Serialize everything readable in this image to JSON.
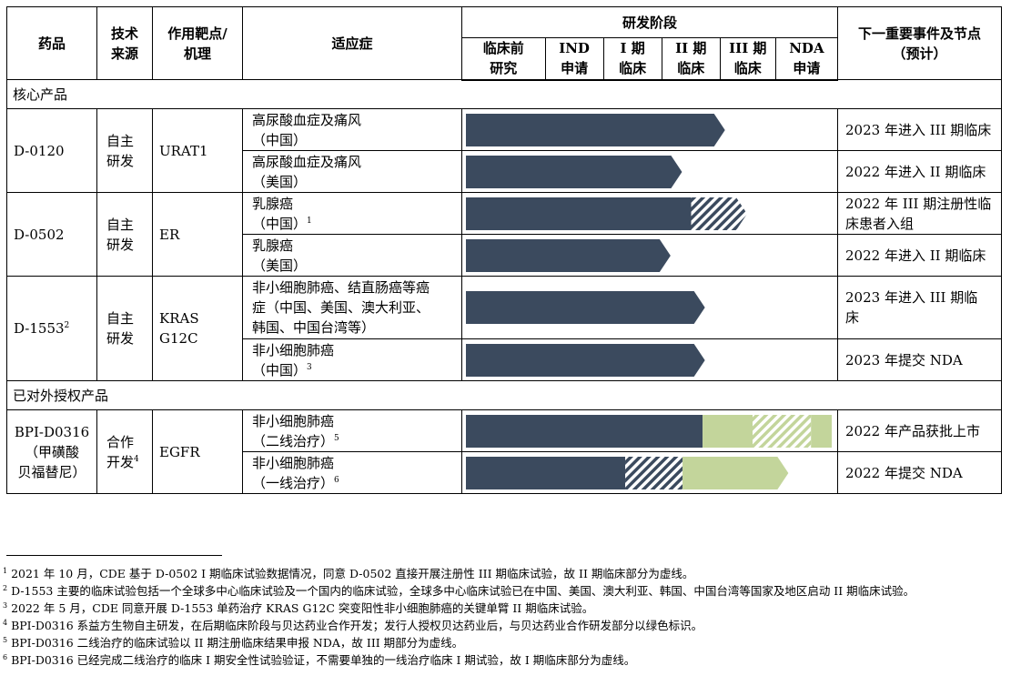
{
  "header": {
    "drug": "药品",
    "source": [
      "技术",
      "来源"
    ],
    "target": [
      "作用靶点/",
      "机理"
    ],
    "indication": "适应症",
    "stage_group": "研发阶段",
    "stages": [
      [
        "临床前",
        "研究"
      ],
      [
        "IND",
        "申请"
      ],
      [
        "I 期",
        "临床"
      ],
      [
        "II 期",
        "临床"
      ],
      [
        "III 期",
        "临床"
      ],
      [
        "NDA",
        "申请"
      ]
    ],
    "next_event": [
      "下一重要事件及节点",
      "（预计）"
    ]
  },
  "colors": {
    "navy": "#3b4a5e",
    "green": "#c3d59b",
    "border": "#000000"
  },
  "sections": [
    {
      "title": "核心产品",
      "drugs": [
        {
          "name": [
            "D-0120"
          ],
          "name_sup": "",
          "source": [
            "自主",
            "研发"
          ],
          "source_sup": "",
          "target": [
            "URAT1"
          ],
          "rows": [
            {
              "indication": [
                "高尿酸血症及痛风",
                "（中国）"
              ],
              "ind_sup": "",
              "event": [
                "2023 年进入 III 期临床"
              ],
              "bar": [
                {
                  "from": 0,
                  "to": 3.9,
                  "fill": "navy"
                }
              ],
              "arrow": true
            },
            {
              "indication": [
                "高尿酸血症及痛风",
                "（美国）"
              ],
              "ind_sup": "",
              "event": [
                "2022 年进入 II 期临床"
              ],
              "bar": [
                {
                  "from": 0,
                  "to": 3.15,
                  "fill": "navy"
                }
              ],
              "arrow": true
            }
          ]
        },
        {
          "name": [
            "D-0502"
          ],
          "name_sup": "",
          "source": [
            "自主",
            "研发"
          ],
          "source_sup": "",
          "target": [
            "ER"
          ],
          "rows": [
            {
              "indication": [
                "乳腺癌",
                "（中国）"
              ],
              "ind_sup": "1",
              "event": [
                "2022 年 III 期注册性临",
                "床患者入组"
              ],
              "bar": [
                {
                  "from": 0,
                  "to": 3.5,
                  "fill": "navy"
                },
                {
                  "from": 3.5,
                  "to": 4.3,
                  "fill": "hatch-navy"
                }
              ],
              "arrow": true
            },
            {
              "indication": [
                "乳腺癌",
                "（美国）"
              ],
              "ind_sup": "",
              "event": [
                "2022 年进入 II 期临床"
              ],
              "bar": [
                {
                  "from": 0,
                  "to": 2.95,
                  "fill": "navy"
                }
              ],
              "arrow": true
            }
          ]
        },
        {
          "name": [
            "D-1553"
          ],
          "name_sup": "2",
          "source": [
            "自主",
            "研发"
          ],
          "source_sup": "",
          "target": [
            "KRAS",
            "G12C"
          ],
          "rows": [
            {
              "indication": [
                "非小细胞肺癌、结直肠癌等癌",
                "症（中国、美国、澳大利亚、",
                "韩国、中国台湾等）"
              ],
              "ind_sup": "",
              "event": [
                "2023 年进入 III 期临",
                "床"
              ],
              "bar": [
                {
                  "from": 0,
                  "to": 3.55,
                  "fill": "navy"
                }
              ],
              "arrow": true
            },
            {
              "indication": [
                "非小细胞肺癌",
                "（中国）"
              ],
              "ind_sup": "3",
              "event": [
                "2023 年提交 NDA"
              ],
              "bar": [
                {
                  "from": 0,
                  "to": 3.55,
                  "fill": "navy"
                }
              ],
              "arrow": true
            }
          ]
        }
      ]
    },
    {
      "title": "已对外授权产品",
      "drugs": [
        {
          "name": [
            "BPI-D0316",
            "（甲磺酸",
            "贝福替尼）"
          ],
          "name_sup": "",
          "source": [
            "合作",
            "开发"
          ],
          "source_sup": "4",
          "target": [
            "EGFR"
          ],
          "rows": [
            {
              "indication": [
                "非小细胞肺癌",
                "（二线治疗）"
              ],
              "ind_sup": "5",
              "event": [
                "2022 年产品获批上市"
              ],
              "bar": [
                {
                  "from": 0,
                  "to": 3.7,
                  "fill": "navy"
                },
                {
                  "from": 3.7,
                  "to": 4.6,
                  "fill": "green"
                },
                {
                  "from": 4.6,
                  "to": 5.6,
                  "fill": "hatch-green"
                },
                {
                  "from": 5.6,
                  "to": 6.2,
                  "fill": "green"
                }
              ],
              "arrow": true
            },
            {
              "indication": [
                "非小细胞肺癌",
                "（一线治疗）"
              ],
              "ind_sup": "6",
              "event": [
                "2022 年提交 NDA"
              ],
              "bar": [
                {
                  "from": 0,
                  "to": 2.35,
                  "fill": "navy"
                },
                {
                  "from": 2.35,
                  "to": 3.35,
                  "fill": "hatch-navy"
                },
                {
                  "from": 3.35,
                  "to": 5.05,
                  "fill": "green"
                }
              ],
              "arrow": true
            }
          ]
        }
      ]
    }
  ],
  "footnotes": [
    {
      "num": "1",
      "text": " 2021 年 10 月，CDE 基于 D-0502 I 期临床试验数据情况，同意 D-0502 直接开展注册性 III 期临床试验，故 II 期临床部分为虚线。"
    },
    {
      "num": "2",
      "text": " D-1553 主要的临床试验包括一个全球多中心临床试验及一个国内的临床试验，全球多中心临床试验已在中国、美国、澳大利亚、韩国、中国台湾等国家及地区启动 II 期临床试验。"
    },
    {
      "num": "3",
      "text": " 2022 年 5 月，CDE 同意开展 D-1553 单药治疗 KRAS G12C 突变阳性非小细胞肺癌的关键单臂 II 期临床试验。"
    },
    {
      "num": "4",
      "text": " BPI-D0316 系益方生物自主研发，在后期临床阶段与贝达药业合作开发；发行人授权贝达药业后，与贝达药业合作研发部分以绿色标识。"
    },
    {
      "num": "5",
      "text": " BPI-D0316 二线治疗的临床试验以 II 期注册临床结果申报 NDA，故 III 期部分为虚线。"
    },
    {
      "num": "6",
      "text": " BPI-D0316 已经完成二线治疗的临床 I 期安全性试验验证，不需要单独的一线治疗临床 I 期试验，故 I 期临床部分为虚线。"
    }
  ]
}
